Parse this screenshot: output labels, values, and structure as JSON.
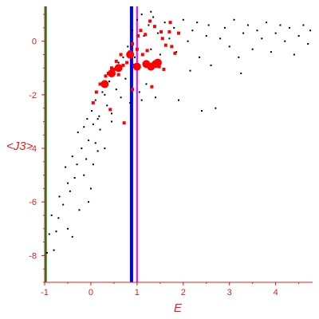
{
  "chart_data": {
    "type": "scatter",
    "title": "",
    "xlabel": "E",
    "ylabel": "<J3>",
    "xlim": [
      -1,
      4.8
    ],
    "ylim": [
      -9,
      1.3
    ],
    "x_ticks": [
      -1,
      0,
      1,
      2,
      3,
      4
    ],
    "y_ticks": [
      -8,
      -6,
      -4,
      -2,
      0
    ],
    "grid": false,
    "legend": "none",
    "colors": {
      "axes": "#e0201a",
      "black_points": "#000000",
      "red_points": "#ff0000",
      "line_green": "#1a7a1a",
      "line_blue": "#0000ff",
      "line_magenta": "#ff00ff"
    },
    "vertical_lines": [
      {
        "x": -0.98,
        "color": "#1a7a1a"
      },
      {
        "x": 0.88,
        "color": "#0000ff"
      },
      {
        "x": 1.0,
        "color": "#ff00ff"
      }
    ],
    "series": [
      {
        "marker": "dot-black",
        "points": [
          [
            -0.95,
            -7.9
          ],
          [
            -0.9,
            -7.2
          ],
          [
            -0.85,
            -6.5
          ],
          [
            -0.8,
            -7.8
          ],
          [
            -0.75,
            -7.1
          ],
          [
            -0.7,
            -6.6
          ],
          [
            -0.68,
            -5.8
          ],
          [
            -0.6,
            -6.1
          ],
          [
            -0.55,
            -4.7
          ],
          [
            -0.5,
            -5.3
          ],
          [
            -0.5,
            -7.0
          ],
          [
            -0.45,
            -5.6
          ],
          [
            -0.4,
            -4.3
          ],
          [
            -0.35,
            -5.1
          ],
          [
            -0.3,
            -4.6
          ],
          [
            -0.28,
            -3.4
          ],
          [
            -0.25,
            -6.3
          ],
          [
            -0.2,
            -4.0
          ],
          [
            -0.15,
            -3.2
          ],
          [
            -0.1,
            -4.4
          ],
          [
            -0.08,
            -2.9
          ],
          [
            -0.05,
            -3.7
          ],
          [
            0.0,
            -5.5
          ],
          [
            0.02,
            -2.6
          ],
          [
            0.05,
            -3.1
          ],
          [
            0.1,
            -3.8
          ],
          [
            0.1,
            -2.2
          ],
          [
            0.15,
            -4.1
          ],
          [
            0.18,
            -2.8
          ],
          [
            0.2,
            -3.3
          ],
          [
            0.25,
            -1.9
          ],
          [
            0.3,
            -4.0
          ],
          [
            0.35,
            -2.4
          ],
          [
            0.4,
            -1.5
          ],
          [
            0.45,
            -3.0
          ],
          [
            0.5,
            -1.2
          ],
          [
            0.55,
            -1.8
          ],
          [
            0.6,
            -0.8
          ],
          [
            0.65,
            -2.1
          ],
          [
            0.7,
            -0.6
          ],
          [
            0.75,
            -1.4
          ],
          [
            0.8,
            -0.2
          ],
          [
            0.85,
            -2.3
          ],
          [
            0.9,
            0.4
          ],
          [
            0.95,
            -0.6
          ],
          [
            1.0,
            0.8
          ],
          [
            1.05,
            -1.9
          ],
          [
            1.1,
            1.0
          ],
          [
            1.15,
            0.2
          ],
          [
            1.2,
            -0.8
          ],
          [
            1.25,
            0.6
          ],
          [
            1.3,
            -0.3
          ],
          [
            1.35,
            0.9
          ],
          [
            1.45,
            0.3
          ],
          [
            1.5,
            -0.5
          ],
          [
            1.6,
            0.7
          ],
          [
            1.7,
            0.1
          ],
          [
            1.8,
            0.5
          ],
          [
            1.85,
            -0.4
          ],
          [
            1.9,
            -2.2
          ],
          [
            2.0,
            0.8
          ],
          [
            2.1,
            0.0
          ],
          [
            2.15,
            -1.1
          ],
          [
            2.2,
            0.4
          ],
          [
            2.3,
            0.7
          ],
          [
            2.35,
            -0.6
          ],
          [
            2.4,
            -2.6
          ],
          [
            2.5,
            0.2
          ],
          [
            2.55,
            0.6
          ],
          [
            2.6,
            -0.9
          ],
          [
            2.7,
            -2.5
          ],
          [
            2.8,
            0.1
          ],
          [
            2.9,
            0.5
          ],
          [
            3.0,
            -0.2
          ],
          [
            3.1,
            0.8
          ],
          [
            3.2,
            -0.6
          ],
          [
            3.25,
            -1.2
          ],
          [
            3.3,
            0.3
          ],
          [
            3.4,
            0.6
          ],
          [
            3.5,
            -0.3
          ],
          [
            3.6,
            0.4
          ],
          [
            3.7,
            0.1
          ],
          [
            3.8,
            0.7
          ],
          [
            3.9,
            -0.4
          ],
          [
            4.0,
            0.3
          ],
          [
            4.1,
            0.6
          ],
          [
            4.2,
            0.0
          ],
          [
            4.3,
            0.5
          ],
          [
            4.4,
            -0.5
          ],
          [
            4.5,
            0.2
          ],
          [
            4.6,
            0.6
          ],
          [
            4.7,
            -0.1
          ],
          [
            4.75,
            0.4
          ],
          [
            1.4,
            -2.1
          ],
          [
            1.2,
            -1.6
          ],
          [
            1.1,
            -2.2
          ],
          [
            -0.05,
            -6.0
          ],
          [
            0.05,
            -4.6
          ],
          [
            -0.4,
            -7.3
          ],
          [
            -0.15,
            -5.0
          ],
          [
            0.15,
            -2.9
          ],
          [
            0.3,
            -2.0
          ],
          [
            0.45,
            -2.7
          ],
          [
            1.3,
            1.1
          ]
        ]
      },
      {
        "marker": "square-red",
        "points": [
          [
            0.05,
            -2.3
          ],
          [
            0.12,
            -1.9
          ],
          [
            0.2,
            -1.6
          ],
          [
            0.28,
            -1.65
          ],
          [
            0.32,
            -1.3
          ],
          [
            0.38,
            -1.2
          ],
          [
            0.42,
            -2.55
          ],
          [
            0.45,
            -1.0
          ],
          [
            0.5,
            -1.05
          ],
          [
            0.55,
            -0.75
          ],
          [
            0.6,
            -1.25
          ],
          [
            0.65,
            -0.5
          ],
          [
            0.7,
            -0.9
          ],
          [
            0.72,
            -3.05
          ],
          [
            0.78,
            -0.8
          ],
          [
            0.85,
            -0.4
          ],
          [
            0.9,
            -0.1
          ],
          [
            0.95,
            -0.9
          ],
          [
            1.02,
            0.2
          ],
          [
            1.08,
            0.4
          ],
          [
            1.12,
            -0.5
          ],
          [
            1.18,
            0.25
          ],
          [
            1.22,
            -0.35
          ],
          [
            1.28,
            0.75
          ],
          [
            1.32,
            -0.9
          ],
          [
            1.38,
            0.55
          ],
          [
            1.42,
            -0.8
          ],
          [
            1.48,
            -0.95
          ],
          [
            1.52,
            0.35
          ],
          [
            1.58,
            -1.05
          ],
          [
            1.62,
            -0.15
          ],
          [
            1.7,
            0.35
          ],
          [
            1.75,
            -0.2
          ],
          [
            1.82,
            -0.45
          ],
          [
            1.9,
            0.3
          ],
          [
            1.32,
            -1.7
          ],
          [
            1.72,
            0.7
          ],
          [
            1.55,
            0.1
          ],
          [
            1.0,
            -0.3
          ],
          [
            0.9,
            -1.8
          ]
        ]
      },
      {
        "marker": "large-red",
        "points": [
          [
            0.3,
            -1.6
          ],
          [
            0.45,
            -1.2
          ],
          [
            0.6,
            -1.0
          ],
          [
            0.85,
            -0.5
          ],
          [
            1.0,
            -0.95
          ],
          [
            1.2,
            -0.85
          ],
          [
            1.3,
            -0.95
          ],
          [
            1.4,
            -0.85
          ],
          [
            1.45,
            -0.8
          ]
        ]
      }
    ]
  }
}
